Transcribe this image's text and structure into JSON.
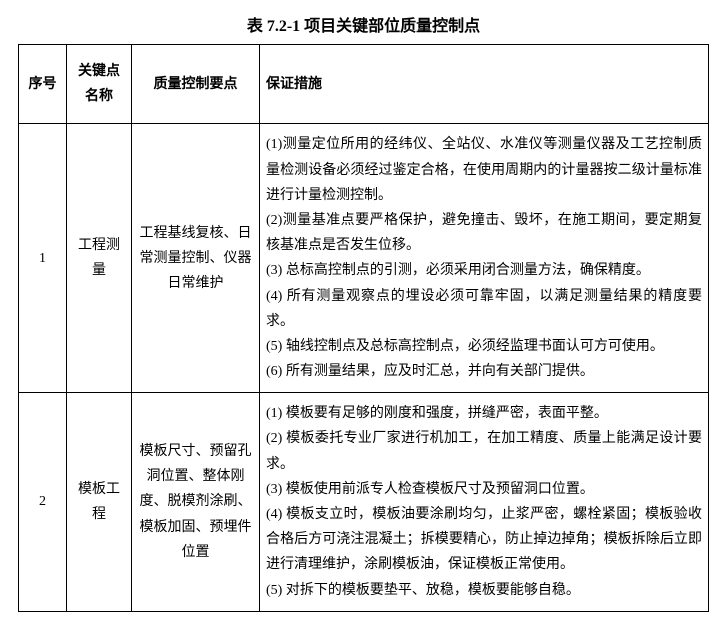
{
  "title": "表 7.2-1 项目关键部位质量控制点",
  "headers": {
    "index": "序号",
    "name": "关键点名称",
    "points": "质量控制要点",
    "measures": "保证措施"
  },
  "rows": [
    {
      "index": "1",
      "name": "工程测量",
      "points": "工程基线复核、日常测量控制、仪器日常维护",
      "measures": [
        "(1)测量定位所用的经纬仪、全站仪、水准仪等测量仪器及工艺控制质量检测设备必须经过鉴定合格，在使用周期内的计量器按二级计量标准进行计量检测控制。",
        "(2)测量基准点要严格保护，避免撞击、毁坏，在施工期间，要定期复核基准点是否发生位移。",
        "(3) 总标高控制点的引测，必须采用闭合测量方法，确保精度。",
        "(4) 所有测量观察点的埋设必须可靠牢固，以满足测量结果的精度要求。",
        "(5) 轴线控制点及总标高控制点，必须经监理书面认可方可使用。",
        "(6) 所有测量结果，应及时汇总，并向有关部门提供。"
      ]
    },
    {
      "index": "2",
      "name": "模板工程",
      "points": "模板尺寸、预留孔洞位置、整体刚度、脱模剂涂刷、模板加固、预埋件位置",
      "measures": [
        "(1) 模板要有足够的刚度和强度，拼缝严密，表面平整。",
        "(2)  模板委托专业厂家进行机加工，在加工精度、质量上能满足设计要求。",
        "(3) 模板使用前派专人检查模板尺寸及预留洞口位置。",
        "(4) 模板支立时，模板油要涂刷均匀，止浆严密，螺栓紧固；模板验收合格后方可浇注混凝土；拆模要精心，防止掉边掉角；模板拆除后立即进行清理维护，涂刷模板油，保证模板正常使用。",
        "(5) 对拆下的模板要垫平、放稳，模板要能够自稳。"
      ]
    }
  ]
}
